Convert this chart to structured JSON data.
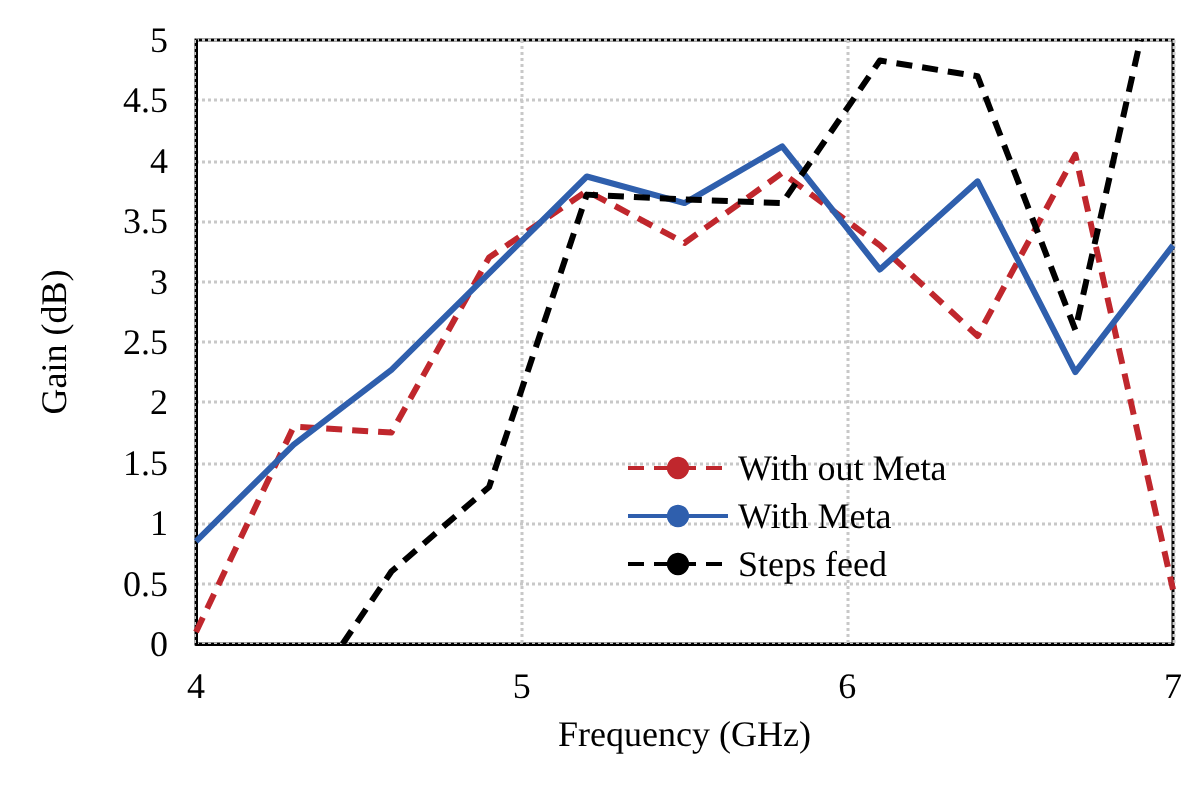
{
  "chart_data": {
    "type": "line",
    "xlabel": "Frequency (GHz)",
    "ylabel": "Gain (dB)",
    "xlim": [
      4,
      7
    ],
    "xticks": [
      4,
      5,
      6,
      7
    ],
    "ylim": [
      0,
      5
    ],
    "yticks": [
      0,
      0.5,
      1,
      1.5,
      2,
      2.5,
      3,
      3.5,
      4,
      4.5,
      5
    ],
    "grid": true,
    "legend": "bottom",
    "marker": "none",
    "series": [
      {
        "name": "With out Meta",
        "color": "#c0272d",
        "line_style": "dashed",
        "x": [
          4,
          4.3,
          4.6,
          4.9,
          5.2,
          5.5,
          5.8,
          6.1,
          6.4,
          6.7,
          7
        ],
        "values": [
          0.1,
          1.8,
          1.75,
          3.2,
          3.75,
          3.32,
          3.9,
          3.3,
          2.55,
          4.05,
          0.45
        ]
      },
      {
        "name": "With Meta",
        "color": "#2f5fad",
        "line_style": "solid",
        "x": [
          4,
          4.3,
          4.6,
          5.2,
          5.5,
          5.8,
          6.1,
          6.4,
          6.7,
          7
        ],
        "values": [
          0.85,
          1.65,
          2.27,
          3.87,
          3.65,
          4.12,
          3.1,
          3.83,
          2.25,
          3.3
        ]
      },
      {
        "name": "Steps feed",
        "color": "#000000",
        "line_style": "dashed",
        "x": [
          4.45,
          4.6,
          4.9,
          5.2,
          5.5,
          5.8,
          6.1,
          6.4,
          6.7,
          6.9
        ],
        "values": [
          0,
          0.6,
          1.3,
          3.72,
          3.68,
          3.65,
          4.83,
          4.7,
          2.6,
          5
        ]
      }
    ]
  }
}
